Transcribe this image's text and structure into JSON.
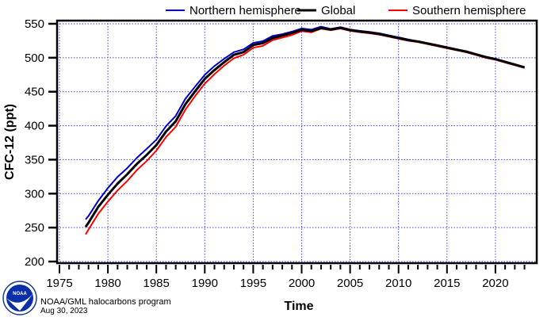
{
  "chart_data": {
    "type": "line",
    "title": "",
    "xlabel": "Time",
    "ylabel": "CFC-12 (ppt)",
    "xlim": [
      1973.6,
      2024.2
    ],
    "ylim": [
      200,
      555
    ],
    "xticks": [
      1975,
      1980,
      1985,
      1990,
      1995,
      2000,
      2005,
      2010,
      2015,
      2020
    ],
    "yticks": [
      200,
      250,
      300,
      350,
      400,
      450,
      500,
      550
    ],
    "grid": true,
    "legend_position": "top",
    "x": [
      1977.7,
      1978,
      1979,
      1980,
      1981,
      1982,
      1983,
      1984,
      1985,
      1986,
      1987,
      1988,
      1989,
      1990,
      1991,
      1992,
      1993,
      1994,
      1995,
      1996,
      1997,
      1998,
      1999,
      2000,
      2001,
      2002,
      2003,
      2004,
      2005,
      2006,
      2007,
      2008,
      2009,
      2010,
      2011,
      2012,
      2013,
      2014,
      2015,
      2016,
      2017,
      2018,
      2019,
      2020,
      2021,
      2022,
      2023
    ],
    "series": [
      {
        "name": "Northern hemisphere",
        "color": "#0000cc",
        "values": [
          262,
          268,
          288,
          310,
          323,
          339,
          352,
          366,
          380,
          398,
          416,
          438,
          459,
          474,
          488,
          499,
          507,
          514,
          520,
          526,
          531,
          535,
          539,
          542,
          543,
          544,
          544,
          544,
          542,
          540,
          538,
          536,
          533,
          530,
          527,
          524,
          521,
          518,
          515,
          512,
          509,
          505,
          501,
          498,
          494,
          490,
          485
        ]
      },
      {
        "name": "Global",
        "color": "#000000",
        "values": [
          251,
          258,
          279,
          300,
          313,
          330,
          343,
          357,
          372,
          390,
          408,
          430,
          452,
          468,
          482,
          494,
          503,
          510,
          517,
          523,
          528,
          533,
          537,
          540,
          541,
          542,
          543,
          543,
          541,
          539,
          537,
          535,
          532,
          529,
          526,
          524,
          521,
          518,
          515,
          512,
          509,
          505,
          501,
          498,
          494,
          490,
          486
        ]
      },
      {
        "name": "Southern hemisphere",
        "color": "#ff0000",
        "values": [
          240,
          248,
          269,
          290,
          303,
          320,
          334,
          348,
          364,
          382,
          400,
          422,
          445,
          461,
          476,
          489,
          498,
          506,
          513,
          519,
          525,
          530,
          534,
          538,
          539,
          541,
          542,
          542,
          540,
          538,
          536,
          534,
          531,
          528,
          525,
          523,
          520,
          517,
          514,
          511,
          508,
          504,
          500,
          497,
          493,
          489,
          485
        ]
      }
    ]
  },
  "credit": {
    "line1": "NOAA/GML halocarbons program",
    "line2": "Aug 30, 2023",
    "logo_text": "NOAA"
  },
  "colors": {
    "grid": "#4444ee"
  }
}
